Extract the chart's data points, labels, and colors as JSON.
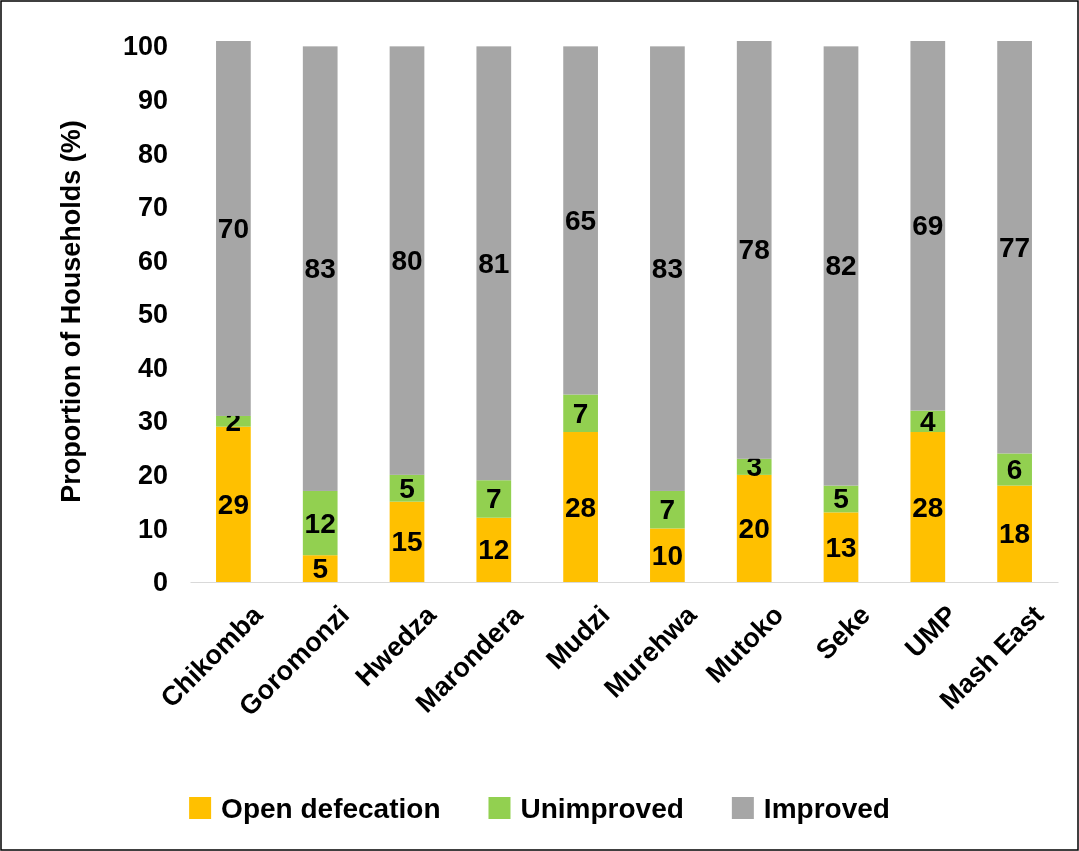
{
  "chart_data": {
    "type": "bar",
    "stacked": true,
    "ylabel": "Proportion of Households (%)",
    "categories": [
      "Chikomba",
      "Goromonzi",
      "Hwedza",
      "Marondera",
      "Mudzi",
      "Murehwa",
      "Mutoko",
      "Seke",
      "UMP",
      "Mash East"
    ],
    "series": [
      {
        "name": "Open defecation",
        "color": "#ffc000",
        "values": [
          29,
          5,
          15,
          12,
          28,
          10,
          20,
          13,
          28,
          18
        ]
      },
      {
        "name": "Unimproved",
        "color": "#92d050",
        "values": [
          2,
          12,
          5,
          7,
          7,
          7,
          3,
          5,
          4,
          6
        ]
      },
      {
        "name": "Improved",
        "color": "#a6a6a6",
        "values": [
          70,
          83,
          80,
          81,
          65,
          83,
          78,
          82,
          69,
          77
        ]
      }
    ],
    "ylim": [
      0,
      101
    ],
    "yticks": [
      0,
      10,
      20,
      30,
      40,
      50,
      60,
      70,
      80,
      90,
      100
    ],
    "data_labels": true,
    "legend": "bottom"
  }
}
